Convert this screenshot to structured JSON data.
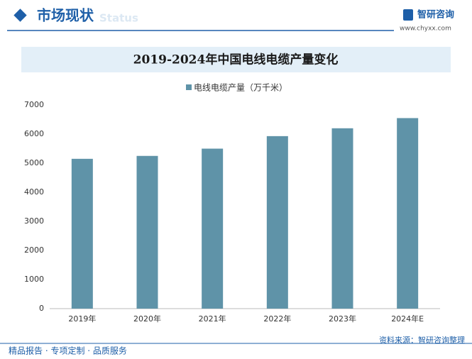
{
  "header": {
    "title": "市场现状",
    "subtitle": "Status",
    "brand": "智研咨询",
    "url": "www.chyxx.com"
  },
  "chart_data": {
    "type": "bar",
    "title": "2019-2024年中国电线电缆产量变化",
    "categories": [
      "2019年",
      "2020年",
      "2021年",
      "2022年",
      "2023年",
      "2024年E"
    ],
    "series": [
      {
        "name": "电线电缆产量（万千米）",
        "color": "#5f93a8",
        "values": [
          5150,
          5250,
          5500,
          5930,
          6200,
          6550
        ]
      }
    ],
    "ylim": [
      0,
      7000
    ],
    "yticks": [
      0,
      1000,
      2000,
      3000,
      4000,
      5000,
      6000,
      7000
    ],
    "grid": false
  },
  "footer": {
    "slogan": "精品报告 · 专项定制 · 品质服务",
    "source": "资料来源：智研咨询整理"
  }
}
